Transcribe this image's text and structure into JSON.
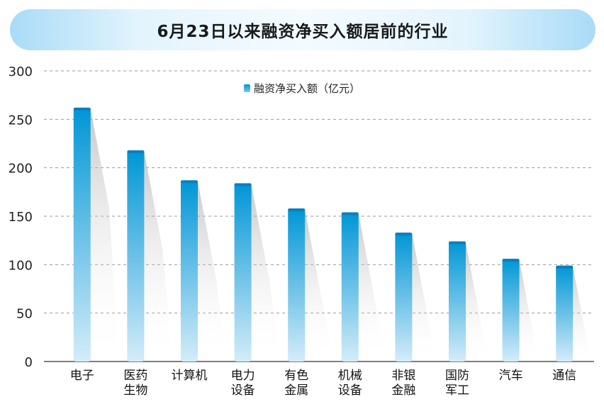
{
  "chart_data": {
    "type": "bar",
    "title": "6月23日以来融资净买入额居前的行业",
    "categories": [
      [
        "电子"
      ],
      [
        "医药",
        "生物"
      ],
      [
        "计算机"
      ],
      [
        "电力",
        "设备"
      ],
      [
        "有色",
        "金属"
      ],
      [
        "机械",
        "设备"
      ],
      [
        "非银",
        "金融"
      ],
      [
        "国防",
        "军工"
      ],
      [
        "汽车"
      ],
      [
        "通信"
      ]
    ],
    "series": [
      {
        "name": "融资净买入额（亿元）",
        "values": [
          262,
          218,
          187,
          184,
          158,
          154,
          133,
          124,
          106,
          99
        ]
      }
    ],
    "ylim": [
      0,
      300
    ],
    "yticks": [
      0,
      50,
      100,
      150,
      200,
      250,
      300
    ],
    "grid": true,
    "legend_position": "top-center",
    "colors": {
      "bar_top": "#0096d6",
      "bar_bottom": "#cfe9f8",
      "grid": "#9a9a9a",
      "title_banner": "#a9dbf7"
    }
  }
}
